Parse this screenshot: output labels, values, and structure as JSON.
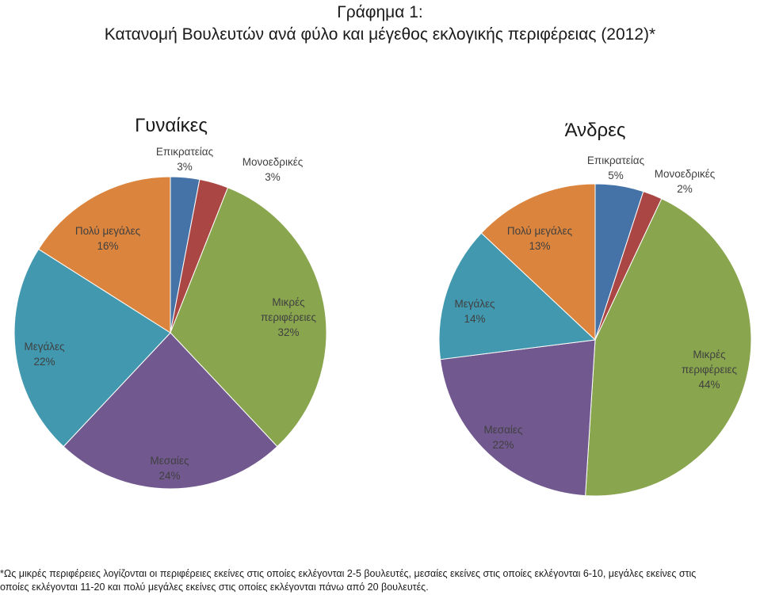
{
  "title": {
    "line1": "Γράφημα 1:",
    "line2": "Κατανομή Βουλευτών ανά φύλο και μέγεθος εκλογικής περιφέρειας (2012)*"
  },
  "colors": {
    "epikrateias": "#4572A7",
    "monoedrikes": "#AA4643",
    "mikres": "#89A54E",
    "mesaies": "#71588F",
    "megales": "#4198AF",
    "poly_megales": "#DB843D"
  },
  "chart_data": [
    {
      "type": "pie",
      "title": "Γυναίκες",
      "slices": [
        {
          "key": "epikrateias",
          "label": "Επικρατείας",
          "value": 3,
          "value_label": "3%"
        },
        {
          "key": "monoedrikes",
          "label": "Μονοεδρικές",
          "value": 3,
          "value_label": "3%"
        },
        {
          "key": "mikres",
          "label": "Μικρές περιφέρειες",
          "value": 32,
          "value_label": "32%"
        },
        {
          "key": "mesaies",
          "label": "Μεσαίες",
          "value": 24,
          "value_label": "24%"
        },
        {
          "key": "megales",
          "label": "Μεγάλες",
          "value": 22,
          "value_label": "22%"
        },
        {
          "key": "poly_megales",
          "label": "Πολύ μεγάλες",
          "value": 16,
          "value_label": "16%"
        }
      ]
    },
    {
      "type": "pie",
      "title": "Άνδρες",
      "slices": [
        {
          "key": "epikrateias",
          "label": "Επικρατείας",
          "value": 5,
          "value_label": "5%"
        },
        {
          "key": "monoedrikes",
          "label": "Μονοεδρικές",
          "value": 2,
          "value_label": "2%"
        },
        {
          "key": "mikres",
          "label": "Μικρές περιφέρειες",
          "value": 44,
          "value_label": "44%"
        },
        {
          "key": "mesaies",
          "label": "Μεσαίες",
          "value": 22,
          "value_label": "22%"
        },
        {
          "key": "megales",
          "label": "Μεγάλες",
          "value": 14,
          "value_label": "14%"
        },
        {
          "key": "poly_megales",
          "label": "Πολύ μεγάλες",
          "value": 13,
          "value_label": "13%"
        }
      ]
    }
  ],
  "footnote": {
    "line1": "*Ως μικρές περιφέρειες λογίζονται οι περιφέρειες εκείνες στις οποίες εκλέγονται 2-5 βουλευτές, μεσαίες εκείνες στις οποίες εκλέγονται 6-10, μεγάλες εκείνες στις",
    "line2": "οποίες εκλέγονται 11-20 και πολύ μεγάλες εκείνες στις οποίες εκλέγονται πάνω από 20 βουλευτές."
  }
}
